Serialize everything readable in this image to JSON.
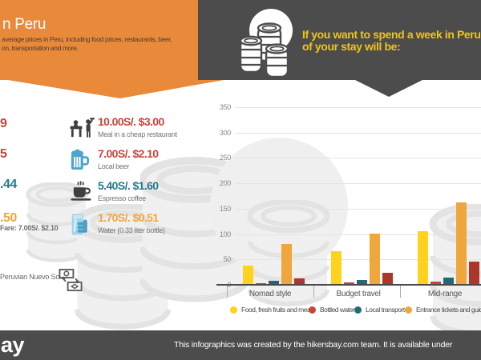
{
  "colors": {
    "orange": "#E98A3B",
    "dark": "#4C4C4C",
    "yellow_text": "#F2C318",
    "price_red": "#C7453C",
    "price_teal": "#26798A",
    "price_orange": "#EFA63C"
  },
  "header_left": {
    "title": "n Peru",
    "subtitle_line1": " average prices in Peru, including food prices, restaurants, beer,",
    "subtitle_line2": "on, transportation and more."
  },
  "header_right": {
    "line1": "If you want to spend a week in Peru the cost",
    "line2": "of your stay will be:"
  },
  "price_list": {
    "items": [
      {
        "icon": "meal-icon",
        "price": "10.00S/. $3.00",
        "label": "Meal in a cheap restaurant",
        "color": "#C7453C"
      },
      {
        "icon": "beer-icon",
        "price": "7.00S/. $2.10",
        "label": "Local beer",
        "color": "#C7453C"
      },
      {
        "icon": "coffee-icon",
        "price": "5.40S/. $1.60",
        "label": "Espresso coffee",
        "color": "#26798A"
      },
      {
        "icon": "water-icon",
        "price": "1.70S/. $0.51",
        "label": "Water (0.33 liter bottle)",
        "color": "#EFA63C"
      }
    ],
    "cut_fragments": [
      {
        "text": "9",
        "color": "#C7453C"
      },
      {
        "text": "5",
        "color": "#C7453C"
      },
      {
        "text": ".44",
        "color": "#26798A"
      },
      {
        "text": ".50",
        "color": "#EFA63C"
      }
    ],
    "fare_note": "Fare: 7.00S/. $2.10"
  },
  "currency_note": {
    "text": "Peruvian Nuevo Sol."
  },
  "chart_data": {
    "type": "bar",
    "categories": [
      "Nomad style",
      "Budget travel",
      "Mid-range"
    ],
    "series": [
      {
        "name": "Food, fresh fruits and meals",
        "color": "#FFD21E",
        "values": [
          38,
          67,
          106
        ]
      },
      {
        "name": "Bottled water",
        "color": "#C9443A",
        "values": [
          3,
          5,
          6
        ]
      },
      {
        "name": "Local transport",
        "color": "#20697A",
        "values": [
          8,
          10,
          14
        ]
      },
      {
        "name": "Entrance tickets and guide s",
        "color": "#EFA63C",
        "values": [
          80,
          101,
          162
        ]
      },
      {
        "name": "",
        "color": "#AE352A",
        "values": [
          13,
          24,
          46
        ]
      }
    ],
    "yticks": [
      0,
      50,
      100,
      150,
      200,
      250,
      300,
      350
    ],
    "ylim": [
      0,
      350
    ],
    "grid": true,
    "legend_position": "bottom",
    "legend_visible_count": 4
  },
  "footer": {
    "logo_text": "ay",
    "attribution": "This infographics was created by the hikersbay.com team. It is available under"
  }
}
